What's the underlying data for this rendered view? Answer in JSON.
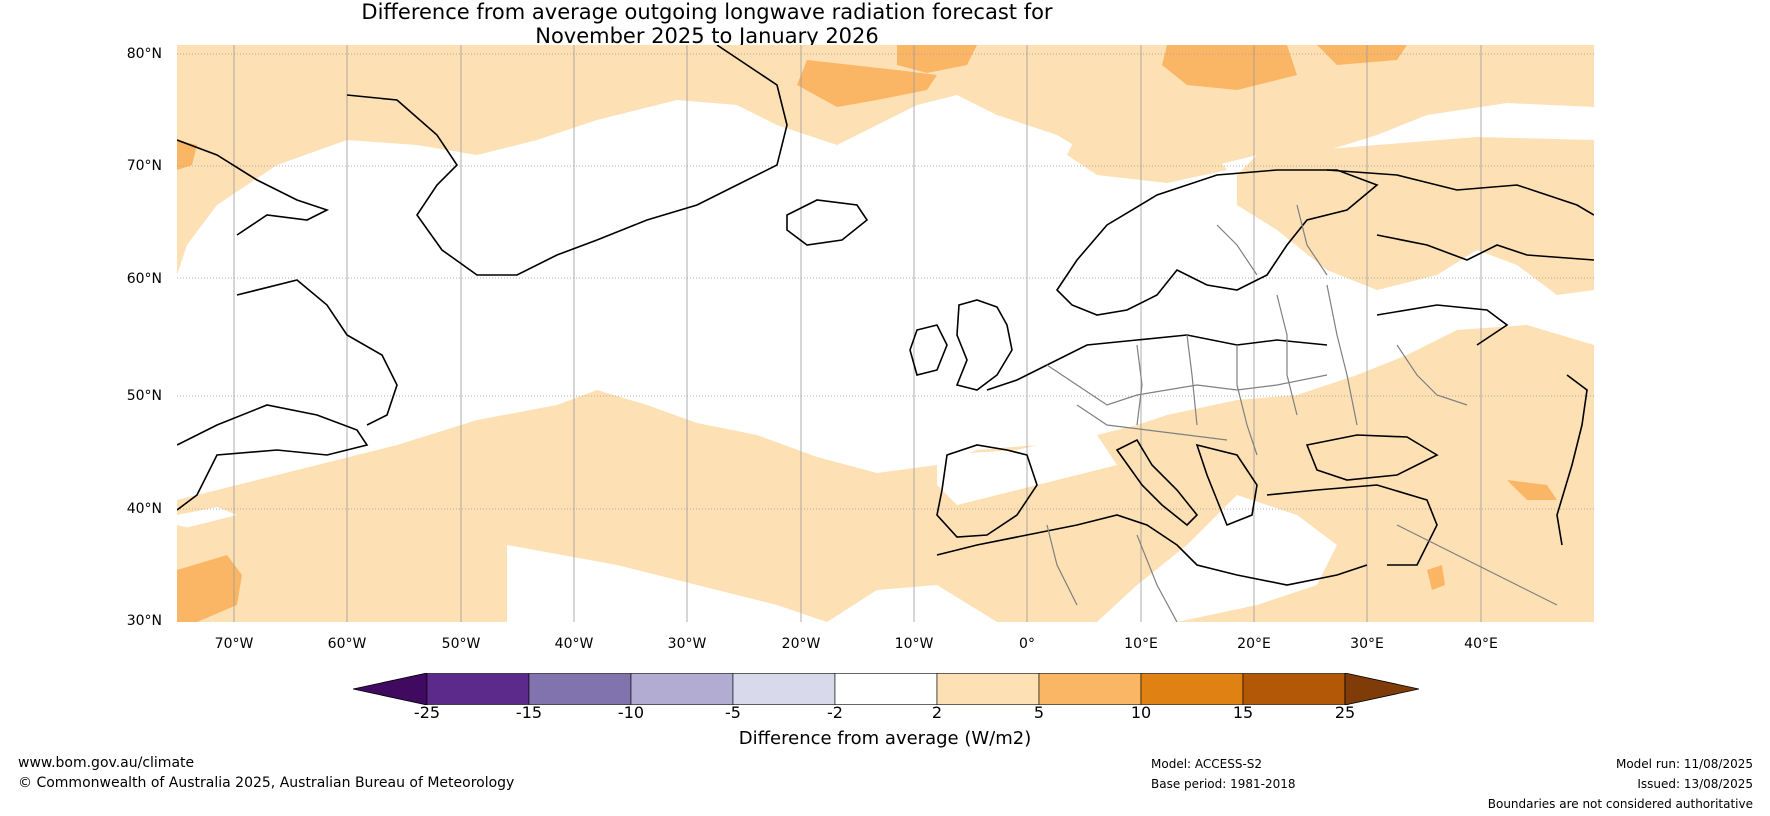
{
  "title": {
    "line1": "Difference from average outgoing longwave radiation forecast for",
    "line2": "November 2025 to January 2026"
  },
  "map": {
    "lat_labels": [
      "80°N",
      "70°N",
      "60°N",
      "50°N",
      "40°N",
      "30°N"
    ],
    "lon_labels": [
      "70°W",
      "60°W",
      "50°W",
      "40°W",
      "30°W",
      "20°W",
      "10°W",
      "0°",
      "10°E",
      "20°E",
      "30°E",
      "40°E"
    ],
    "colors": {
      "band_2_5": "#fde0b4",
      "band_5_10": "#fbb665",
      "ocean_neutral": "#ffffff",
      "coast": "#000000",
      "border": "#808080",
      "gridline": "#9a9a9a"
    }
  },
  "colorbar": {
    "title": "Difference from average (W/m2)",
    "ticks": [
      "-25",
      "-15",
      "-10",
      "-5",
      "-2",
      "2",
      "5",
      "10",
      "15",
      "25"
    ],
    "colors": [
      "#3f0a60",
      "#5b2a8a",
      "#8073ae",
      "#b2abd2",
      "#d8daeb",
      "#ffffff",
      "#fde0b4",
      "#fbb665",
      "#e08213",
      "#b35806",
      "#7f3b08"
    ]
  },
  "footer": {
    "website": "www.bom.gov.au/climate",
    "copyright": "© Commonwealth of Australia 2025, Australian Bureau of Meteorology",
    "model": "Model: ACCESS-S2",
    "base_period": "Base period: 1981-2018",
    "model_run": "Model run: 11/08/2025",
    "issued": "Issued: 13/08/2025",
    "disclaimer": "Boundaries are not considered authoritative"
  }
}
